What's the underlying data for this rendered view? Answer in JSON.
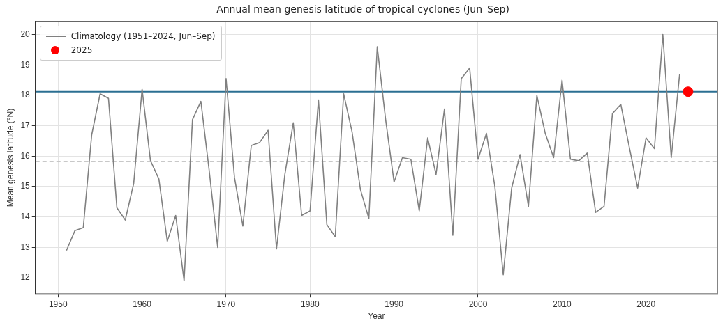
{
  "chart_data": {
    "type": "line",
    "title": "Annual mean genesis latitude of tropical cyclones (Jun–Sep)",
    "xlabel": "Year",
    "ylabel": "Mean genesis latitude (°N)",
    "xlim": [
      1947.3,
      2028.5
    ],
    "xticks": [
      1950,
      1960,
      1970,
      1980,
      1990,
      2000,
      2010,
      2020
    ],
    "ylim": [
      11.47,
      20.43
    ],
    "yticks": [
      12,
      13,
      14,
      15,
      16,
      17,
      18,
      19,
      20
    ],
    "grid": true,
    "legend": "top left",
    "series": [
      {
        "name": "Climatology (1951–2024, Jun–Sep)",
        "color": "#808080",
        "marker": "none",
        "line_style": "solid",
        "x": [
          1951,
          1952,
          1953,
          1954,
          1955,
          1956,
          1957,
          1958,
          1959,
          1960,
          1961,
          1962,
          1963,
          1964,
          1965,
          1966,
          1967,
          1968,
          1969,
          1970,
          1971,
          1972,
          1973,
          1974,
          1975,
          1976,
          1977,
          1978,
          1979,
          1980,
          1981,
          1982,
          1983,
          1984,
          1985,
          1986,
          1987,
          1988,
          1989,
          1990,
          1991,
          1992,
          1993,
          1994,
          1995,
          1996,
          1997,
          1998,
          1999,
          2000,
          2001,
          2002,
          2003,
          2004,
          2005,
          2006,
          2007,
          2008,
          2009,
          2010,
          2011,
          2012,
          2013,
          2014,
          2015,
          2016,
          2017,
          2018,
          2019,
          2020,
          2021,
          2022,
          2023,
          2024
        ],
        "values": [
          12.9,
          13.55,
          13.65,
          16.7,
          18.05,
          17.9,
          14.3,
          13.9,
          15.1,
          18.2,
          15.85,
          15.25,
          13.2,
          14.05,
          11.9,
          17.2,
          17.8,
          15.5,
          13.0,
          18.55,
          15.3,
          13.7,
          16.35,
          16.45,
          16.85,
          12.95,
          15.4,
          17.1,
          14.05,
          14.2,
          17.85,
          13.75,
          13.35,
          18.05,
          16.8,
          14.9,
          13.95,
          19.6,
          17.2,
          15.15,
          15.95,
          15.9,
          14.2,
          16.6,
          15.4,
          17.55,
          13.4,
          18.55,
          18.9,
          15.9,
          16.75,
          15.0,
          12.1,
          14.95,
          16.05,
          14.35,
          18.0,
          16.75,
          15.95,
          18.5,
          15.9,
          15.85,
          16.1,
          14.15,
          14.35,
          17.4,
          17.7,
          16.3,
          14.95,
          16.6,
          16.25,
          20.0,
          15.95,
          18.7
        ]
      },
      {
        "name": "2025",
        "type": "scatter",
        "color": "#ff0000",
        "marker": "circle",
        "x": [
          2025
        ],
        "values": [
          18.12
        ]
      }
    ],
    "ref_lines": [
      {
        "axis": "y",
        "value": 18.12,
        "color": "#2b6f92",
        "line_style": "solid"
      },
      {
        "axis": "y",
        "value": 15.82,
        "color": "#c8c8c8",
        "line_style": "dashed"
      }
    ]
  }
}
